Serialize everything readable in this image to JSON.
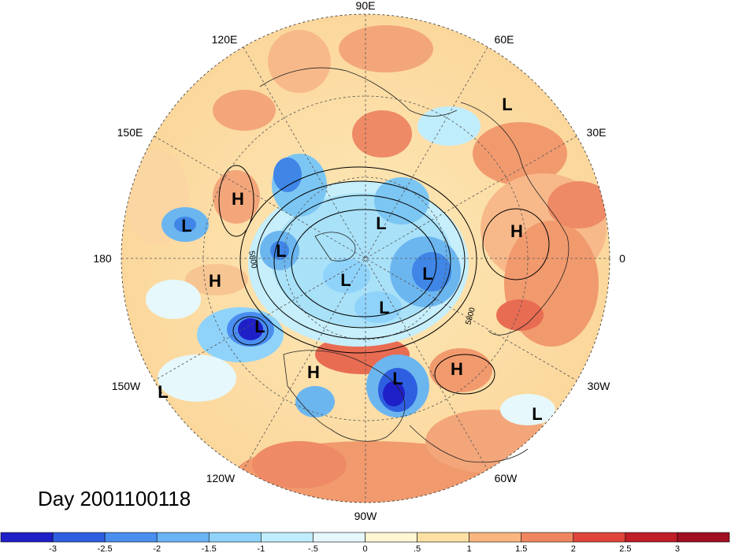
{
  "map": {
    "lon_labels": {
      "north": "90E",
      "top_left": "120E",
      "top_right": "60E",
      "left_upper": "150E",
      "right_upper": "30E",
      "left": "180",
      "right": "0",
      "left_lower": "150W",
      "right_lower": "30W",
      "bottom_left": "120W",
      "bottom_right": "60W",
      "south": "90W"
    },
    "pressure_centers": [
      {
        "label": "L",
        "kind": "low"
      },
      {
        "label": "H",
        "kind": "high"
      },
      {
        "label": "L",
        "kind": "low"
      },
      {
        "label": "H",
        "kind": "high"
      },
      {
        "label": "L",
        "kind": "low"
      },
      {
        "label": "L",
        "kind": "low"
      },
      {
        "label": "L",
        "kind": "low"
      },
      {
        "label": "L",
        "kind": "low"
      },
      {
        "label": "L",
        "kind": "low"
      },
      {
        "label": "H",
        "kind": "high"
      },
      {
        "label": "L",
        "kind": "low"
      },
      {
        "label": "H",
        "kind": "high"
      },
      {
        "label": "H",
        "kind": "high"
      },
      {
        "label": "L",
        "kind": "low"
      },
      {
        "label": "L",
        "kind": "low"
      },
      {
        "label": "L",
        "kind": "low"
      }
    ],
    "contour_labels": [
      "5800",
      "5800"
    ]
  },
  "title": {
    "day_text": "Day 2001100118"
  },
  "colorbar": {
    "ticks": [
      "-3",
      "-2.5",
      "-2",
      "-1.5",
      "-1",
      "-.5",
      "0",
      ".5",
      "1",
      "1.5",
      "2",
      "2.5",
      "3"
    ],
    "colors": [
      "#1f1fc8",
      "#2e5fe0",
      "#4a8ef0",
      "#6ab4f6",
      "#8fd3fa",
      "#c0edfc",
      "#e6f8fb",
      "#fff6d2",
      "#fde1a4",
      "#f9b67e",
      "#f08660",
      "#e0453c",
      "#c01e28",
      "#a01020"
    ]
  }
}
